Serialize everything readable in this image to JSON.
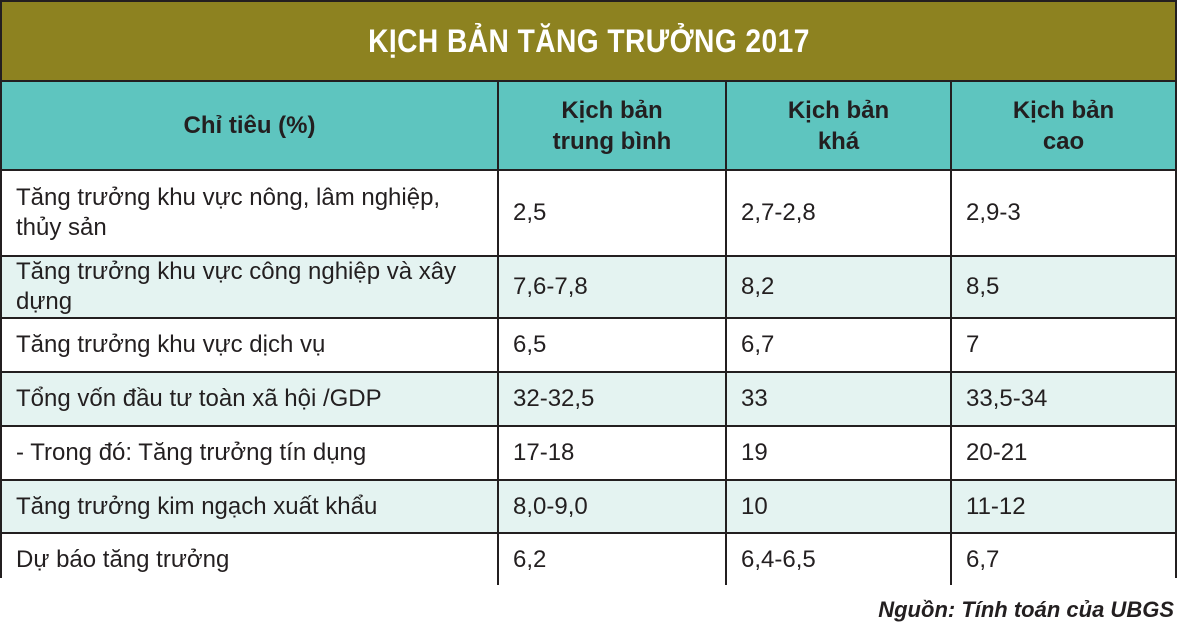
{
  "title": "KỊCH BẢN TĂNG TRƯỞNG 2017",
  "columns": [
    {
      "line1": "Chỉ tiêu (%)",
      "line2": ""
    },
    {
      "line1": "Kịch bản",
      "line2": "trung bình"
    },
    {
      "line1": "Kịch bản",
      "line2": "khá"
    },
    {
      "line1": "Kịch bản",
      "line2": "cao"
    }
  ],
  "rows": [
    {
      "label": "Tăng trưởng khu vực nông, lâm nghiệp, thủy sản",
      "values": [
        "2,5",
        "2,7-2,8",
        "2,9-3"
      ]
    },
    {
      "label": "Tăng trưởng khu vực công nghiệp và xây dựng",
      "values": [
        "7,6-7,8",
        "8,2",
        "8,5"
      ]
    },
    {
      "label": "Tăng trưởng khu vực dịch vụ",
      "values": [
        "6,5",
        "6,7",
        "7"
      ]
    },
    {
      "label": "Tổng vốn đầu tư toàn xã hội /GDP",
      "values": [
        "32-32,5",
        "33",
        "33,5-34"
      ]
    },
    {
      "label": "- Trong đó: Tăng trưởng tín dụng",
      "values": [
        "17-18",
        "19",
        "20-21"
      ]
    },
    {
      "label": "Tăng trưởng kim ngạch xuất khẩu",
      "values": [
        "8,0-9,0",
        "10",
        "11-12"
      ]
    },
    {
      "label": "Dự báo tăng trưởng",
      "values": [
        "6,2",
        "6,4-6,5",
        "6,7"
      ]
    }
  ],
  "source": "Nguồn: Tính toán của UBGS",
  "colors": {
    "title_bg": "#8d8220",
    "header_bg": "#5ec5bf",
    "row_tint": "#e4f3f1",
    "border": "#231f20"
  }
}
